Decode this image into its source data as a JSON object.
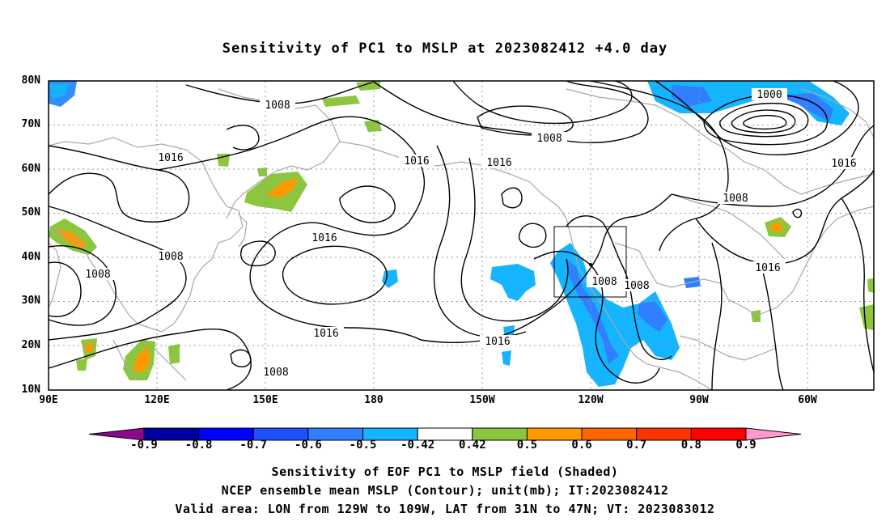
{
  "title": "Sensitivity of PC1 to MSLP at 2023082412 +4.0 day",
  "lat_labels": [
    "80N",
    "70N",
    "60N",
    "50N",
    "40N",
    "30N",
    "20N",
    "10N"
  ],
  "lon_labels": [
    "90E",
    "120E",
    "150E",
    "180",
    "150W",
    "120W",
    "90W",
    "60W"
  ],
  "colorbar": {
    "labels": [
      "-0.9",
      "-0.8",
      "-0.7",
      "-0.6",
      "-0.5",
      "-0.42",
      "0.42",
      "0.5",
      "0.6",
      "0.7",
      "0.8",
      "0.9"
    ],
    "colors": [
      "#8b0a8b",
      "#0000a0",
      "#0000ff",
      "#1f4fff",
      "#2f7fff",
      "#15b4ff",
      "#ffffff",
      "#8cc63f",
      "#ff9900",
      "#ff6600",
      "#ff3300",
      "#ff0000",
      "#ff99cc"
    ]
  },
  "contour_labels": [
    "1008",
    "1016",
    "1016",
    "1008",
    "1000",
    "1016",
    "1016",
    "1008",
    "1008",
    "1008",
    "1016",
    "1016",
    "1016",
    "1008",
    "1016",
    "1008",
    "1008"
  ],
  "captions": [
    "Sensitivity of EOF PC1 to MSLP field (Shaded)",
    "NCEP ensemble mean MSLP (Contour); unit(mb); IT:2023082412",
    "Valid area: LON from 129W to 109W, LAT from 31N to 47N; VT: 2023083012"
  ],
  "colors": {
    "coast": "#a8a8a8",
    "grid": "#9a9a9a",
    "contour": "#000000"
  }
}
